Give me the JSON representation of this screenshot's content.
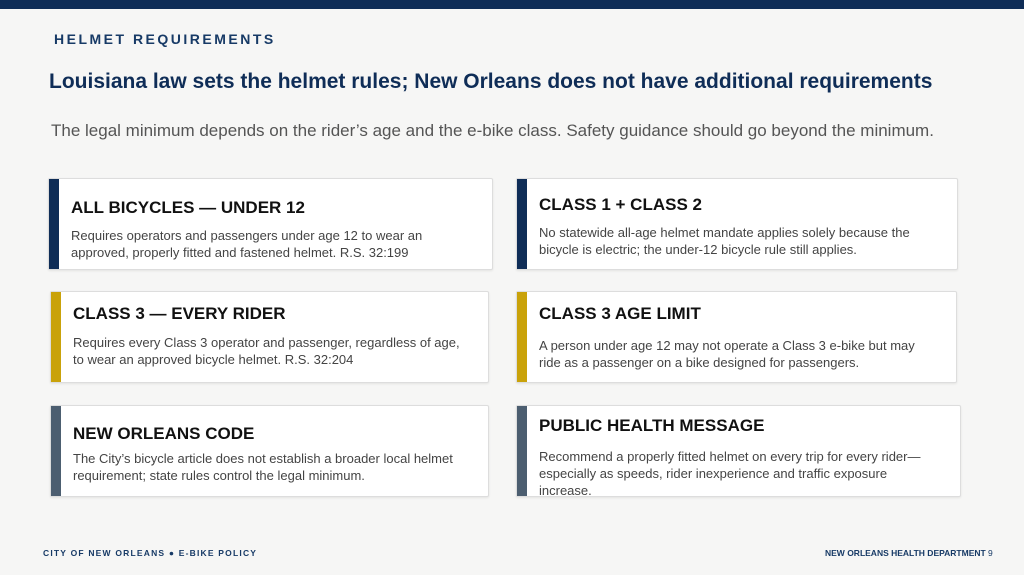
{
  "header": {
    "kicker": "HELMET REQUIREMENTS",
    "title": "Louisiana law sets the helmet rules; New Orleans does not have additional requirements",
    "subtitle": "The legal minimum depends on the rider’s age and the e-bike class. Safety guidance should go beyond the minimum."
  },
  "cards": [
    {
      "title": "ALL BICYCLES — UNDER 12",
      "body": "Requires operators and passengers under age 12 to wear an approved, properly fitted and fastened helmet. R.S. 32:199"
    },
    {
      "title": "CLASS 1 + CLASS 2",
      "body": "No statewide all-age helmet mandate applies solely because the bicycle is electric; the under-12 bicycle rule still applies."
    },
    {
      "title": "CLASS 3 — EVERY RIDER",
      "body": "Requires every Class 3 operator and passenger, regardless of age, to wear an approved bicycle helmet. R.S. 32:204"
    },
    {
      "title": "CLASS 3 AGE LIMIT",
      "body": "A person under age 12 may not operate a Class 3 e-bike but may ride as a passenger on a bike designed for passengers."
    },
    {
      "title": "NEW ORLEANS CODE",
      "body": "The City’s bicycle article does not establish a broader local helmet requirement; state rules control the legal minimum."
    },
    {
      "title": "PUBLIC HEALTH MESSAGE",
      "body": "Recommend a properly fitted helmet on every trip for every rider—especially as speeds, rider inexperience and traffic exposure increase."
    }
  ],
  "footer": {
    "left": "CITY OF NEW ORLEANS  ●  E-BIKE POLICY",
    "right": "NEW ORLEANS HEALTH DEPARTMENT",
    "page": "9"
  }
}
